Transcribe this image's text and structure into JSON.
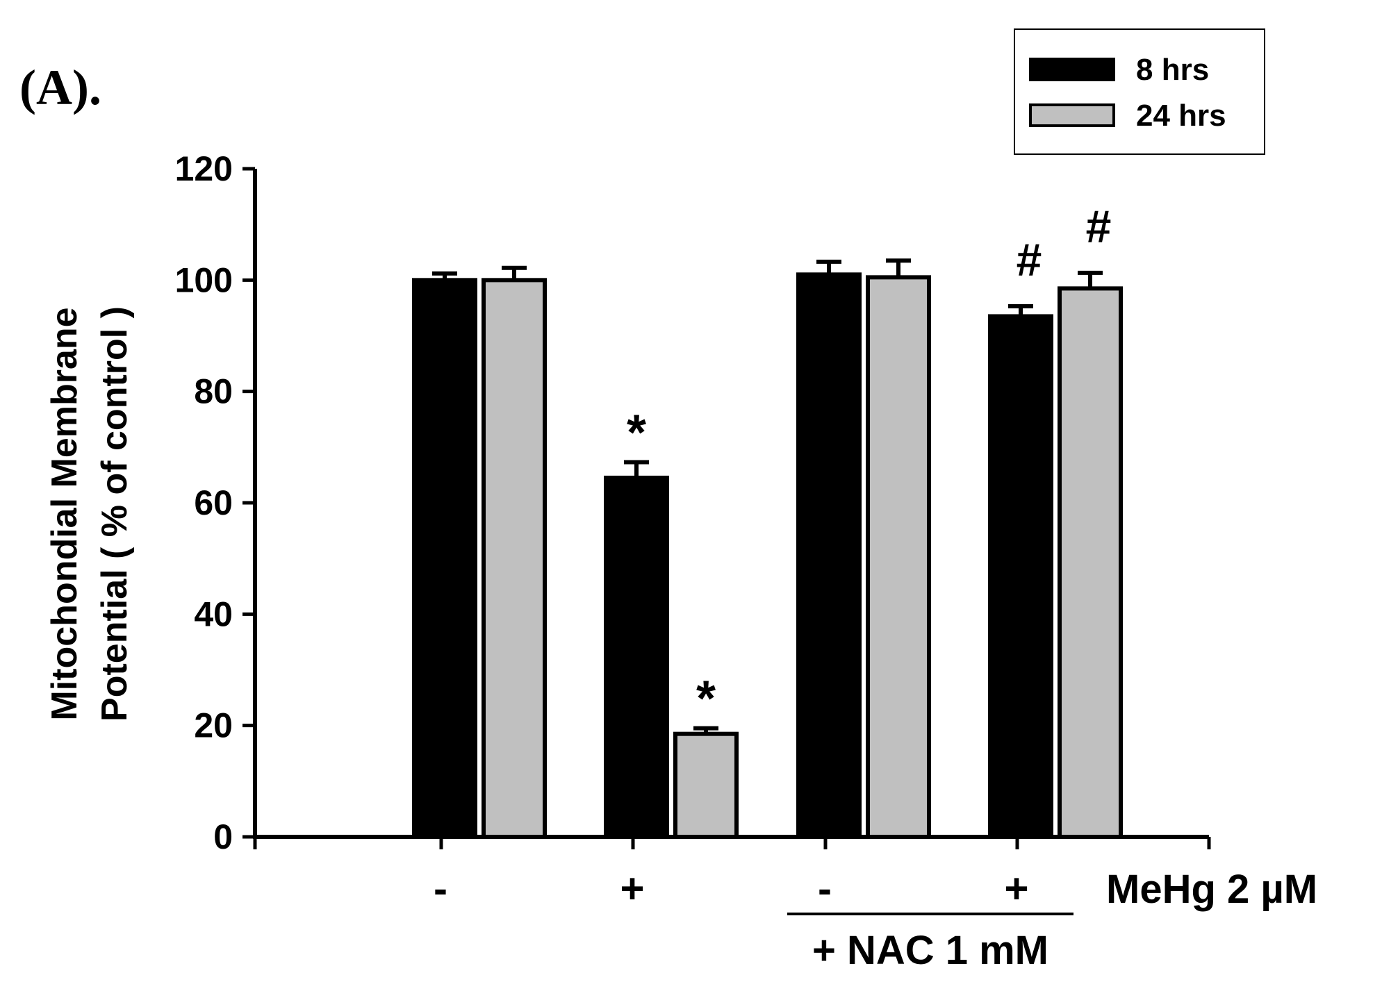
{
  "panel_label": "(A).",
  "chart_data": {
    "type": "bar",
    "title": "",
    "xlabel": "",
    "ylabel_lines": [
      "Mitochondial Membrane",
      "Potential ( % of control )"
    ],
    "ylim": [
      0,
      120
    ],
    "yticks": [
      0,
      20,
      40,
      60,
      80,
      100,
      120
    ],
    "grid": false,
    "legend_position": "top-right",
    "categories": [
      "-",
      "+",
      "-",
      "+"
    ],
    "treatment_label": "MeHg 2 µM",
    "group_label": "+ NAC 1 mM",
    "series": [
      {
        "name": "8 hrs",
        "color": "#000000",
        "values": [
          100,
          64.5,
          101,
          93.5
        ],
        "errors": [
          1.2,
          2.8,
          2.3,
          1.8
        ],
        "annotations": [
          "",
          "*",
          "",
          "#"
        ]
      },
      {
        "name": "24 hrs",
        "color": "#c0c0c0",
        "values": [
          100,
          18.5,
          100.5,
          98.5
        ],
        "errors": [
          2.2,
          1.0,
          3.0,
          2.8
        ],
        "annotations": [
          "",
          "*",
          "",
          "#"
        ]
      }
    ]
  }
}
